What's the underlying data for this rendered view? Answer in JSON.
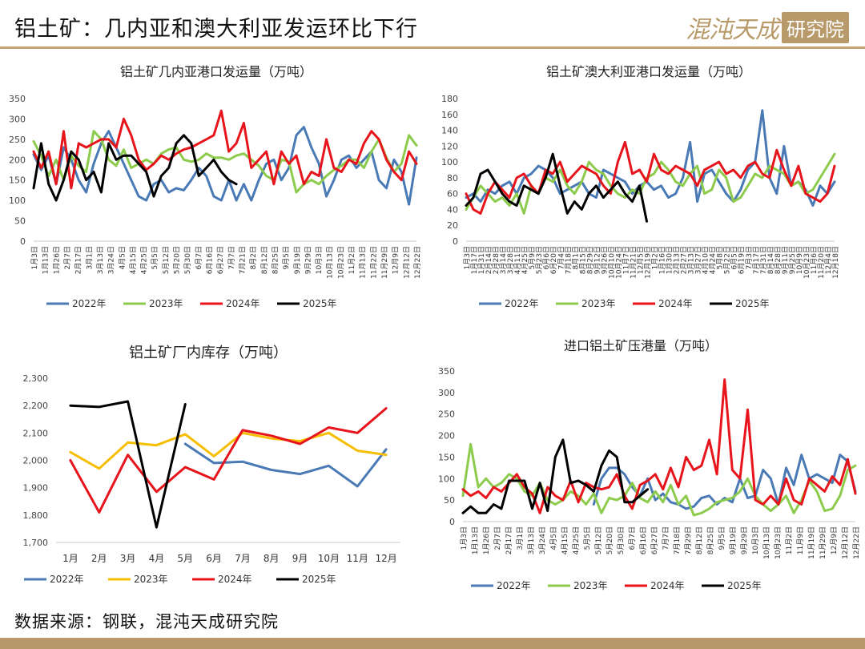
{
  "page": {
    "title": "铝土矿：几内亚和澳大利亚发运环比下行",
    "brand_name": "混沌天成",
    "brand_tag": "研究院",
    "source": "数据来源：钢联，混沌天成研究院"
  },
  "colors": {
    "2022年": "#4a7ab5",
    "2023年": "#8dcb4d",
    "2024年": "#e8141b",
    "2025年": "#000000",
    "2023年_inventory": "#f6be00",
    "accent": "#c8a474"
  },
  "chart_data": [
    {
      "id": "guinea",
      "type": "line",
      "title": "铝土矿几内亚港口发运量（万吨）",
      "ylim": [
        0,
        350
      ],
      "yticks": [
        0,
        50,
        100,
        150,
        200,
        250,
        300,
        350
      ],
      "n": 52,
      "x_ticks": [
        "1月3日",
        "1月13日",
        "1月26日",
        "2月7日",
        "2月17日",
        "3月1日",
        "3月13日",
        "3月24日",
        "4月5日",
        "4月15日",
        "4月25日",
        "5月5日",
        "5月12日",
        "5月20日",
        "5月30日",
        "6月7日",
        "6月16日",
        "6月27日",
        "7月7日",
        "7月21日",
        "8月2日",
        "8月12日",
        "8月25日",
        "9月5日",
        "9月19日",
        "9月29日",
        "10月3日",
        "10月13日",
        "10月23日",
        "11月2日",
        "11月13日",
        "11月22日",
        "11月29日",
        "12月9日",
        "12月12日",
        "12月22日"
      ],
      "series": [
        {
          "name": "2022年",
          "values": [
            213,
            175,
            210,
            140,
            230,
            200,
            150,
            120,
            190,
            240,
            270,
            230,
            190,
            150,
            110,
            100,
            140,
            150,
            120,
            130,
            125,
            150,
            180,
            160,
            110,
            100,
            150,
            100,
            140,
            100,
            150,
            190,
            200,
            150,
            180,
            260,
            280,
            230,
            190,
            110,
            150,
            200,
            210,
            180,
            200,
            220,
            150,
            130,
            200,
            170,
            90,
            205
          ]
        },
        {
          "name": "2023年",
          "values": [
            245,
            210,
            160,
            200,
            150,
            210,
            185,
            170,
            270,
            250,
            200,
            185,
            225,
            180,
            190,
            200,
            190,
            215,
            225,
            230,
            200,
            195,
            200,
            215,
            205,
            205,
            200,
            210,
            215,
            200,
            185,
            160,
            150,
            200,
            195,
            120,
            140,
            150,
            140,
            160,
            175,
            185,
            200,
            200,
            180,
            220,
            250,
            205,
            170,
            190,
            260,
            235
          ]
        },
        {
          "name": "2024年",
          "values": [
            220,
            180,
            220,
            140,
            270,
            130,
            240,
            230,
            240,
            250,
            250,
            230,
            300,
            260,
            200,
            175,
            190,
            210,
            200,
            215,
            225,
            230,
            240,
            250,
            260,
            320,
            220,
            240,
            290,
            180,
            200,
            220,
            140,
            220,
            190,
            210,
            140,
            170,
            160,
            250,
            180,
            170,
            200,
            190,
            240,
            270,
            250,
            200,
            170,
            150,
            220,
            190
          ]
        },
        {
          "name": "2025年",
          "values": [
            130,
            240,
            140,
            100,
            150,
            220,
            200,
            150,
            170,
            120,
            240,
            200,
            210,
            210,
            190,
            170,
            110,
            160,
            180,
            240,
            260,
            240,
            160,
            180,
            200,
            170,
            150,
            140
          ]
        }
      ],
      "legend": [
        "2022年",
        "2023年",
        "2024年",
        "2025年"
      ]
    },
    {
      "id": "australia",
      "type": "line",
      "title": "铝土矿澳大利亚港口发运量（万吨）",
      "ylim": [
        0,
        180
      ],
      "yticks": [
        0,
        20,
        40,
        60,
        80,
        100,
        120,
        140,
        160,
        180
      ],
      "n": 52,
      "x_ticks": [
        "1月3日",
        "1月17日",
        "1月31日",
        "2月14日",
        "2月28日",
        "3月14日",
        "3月28日",
        "4月11日",
        "4月25日",
        "5月9日",
        "5月23日",
        "6月6日",
        "6月20日",
        "7月4日",
        "7月18日",
        "8月1日",
        "8月15日",
        "8月29日",
        "9月12日",
        "9月26日",
        "10月10日",
        "10月24日",
        "11月7日",
        "11月21日",
        "12月5日",
        "12月19日",
        "1月2日",
        "1月16日",
        "1月30日",
        "2月13日",
        "2月27日",
        "3月13日",
        "3月27日",
        "4月10日",
        "4月24日",
        "5月8日",
        "5月22日",
        "6月5日",
        "6月19日",
        "7月3日",
        "7月17日",
        "7月31日",
        "8月14日",
        "8月28日",
        "9月11日",
        "9月25日",
        "10月9日",
        "10月23日",
        "11月6日",
        "11月20日",
        "12月4日",
        "12月18日"
      ],
      "series": [
        {
          "name": "2022年",
          "values": [
            55,
            60,
            50,
            65,
            60,
            70,
            75,
            60,
            80,
            85,
            95,
            90,
            80,
            60,
            65,
            70,
            75,
            60,
            55,
            90,
            85,
            80,
            75,
            60,
            70,
            75,
            65,
            70,
            55,
            60,
            80,
            125,
            50,
            85,
            90,
            75,
            60,
            50,
            65,
            90,
            100,
            165,
            80,
            60,
            120,
            70,
            75,
            65,
            45,
            70,
            60,
            75
          ]
        },
        {
          "name": "2023年",
          "values": [
            40,
            55,
            70,
            60,
            50,
            55,
            45,
            60,
            35,
            70,
            60,
            80,
            75,
            90,
            70,
            60,
            75,
            100,
            90,
            85,
            70,
            60,
            55,
            65,
            60,
            80,
            85,
            100,
            90,
            75,
            70,
            85,
            95,
            60,
            65,
            90,
            80,
            50,
            55,
            70,
            85,
            80,
            95,
            90,
            85,
            70,
            75,
            60,
            65,
            80,
            95,
            110
          ]
        },
        {
          "name": "2024年",
          "values": [
            60,
            40,
            35,
            60,
            75,
            65,
            55,
            80,
            85,
            70,
            60,
            90,
            85,
            100,
            75,
            85,
            95,
            90,
            85,
            70,
            60,
            100,
            125,
            85,
            90,
            75,
            110,
            90,
            85,
            95,
            90,
            85,
            70,
            90,
            95,
            100,
            85,
            90,
            80,
            95,
            100,
            85,
            80,
            115,
            90,
            70,
            95,
            60,
            55,
            50,
            60,
            95
          ]
        },
        {
          "name": "2025年",
          "values": [
            45,
            55,
            85,
            90,
            75,
            60,
            50,
            45,
            70,
            65,
            60,
            80,
            110,
            70,
            35,
            50,
            40,
            60,
            70,
            55,
            65,
            75,
            60,
            50,
            70,
            25
          ]
        }
      ],
      "legend": [
        "2022年",
        "2023年",
        "2024年",
        "2025年"
      ]
    },
    {
      "id": "inventory",
      "type": "line",
      "title": "铝土矿厂内库存（万吨）",
      "ylim": [
        1700,
        2300
      ],
      "yticks": [
        1700,
        1800,
        1900,
        2000,
        2100,
        2200,
        2300
      ],
      "categories": [
        "1月",
        "2月",
        "3月",
        "4月",
        "5月",
        "6月",
        "7月",
        "8月",
        "9月",
        "10月",
        "11月",
        "12月"
      ],
      "series": [
        {
          "name": "2022年",
          "values": [
            null,
            null,
            null,
            null,
            2060,
            1990,
            1995,
            1965,
            1950,
            1980,
            1905,
            2040
          ]
        },
        {
          "name": "2023年",
          "values": [
            2030,
            1970,
            2065,
            2055,
            2095,
            2015,
            2100,
            2080,
            2070,
            2100,
            2035,
            2020
          ]
        },
        {
          "name": "2024年",
          "values": [
            2000,
            1810,
            2020,
            1885,
            1975,
            1930,
            2110,
            2090,
            2060,
            2120,
            2100,
            2190
          ]
        },
        {
          "name": "2025年",
          "values": [
            2200,
            2195,
            2215,
            1755,
            2205,
            null,
            null,
            null,
            null,
            null,
            null,
            null
          ]
        }
      ],
      "legend": [
        "2022年",
        "2023年",
        "2024年",
        "2025年"
      ]
    },
    {
      "id": "port-stock",
      "type": "line",
      "title": "进口铝土矿压港量（万吨）",
      "ylim": [
        0,
        350
      ],
      "yticks": [
        0,
        50,
        100,
        150,
        200,
        250,
        300,
        350
      ],
      "n": 52,
      "x_ticks": [
        "1月3日",
        "1月13日",
        "1月26日",
        "2月7日",
        "2月17日",
        "3月1日",
        "3月13日",
        "3月24日",
        "4月5日",
        "4月15日",
        "4月25日",
        "5月5日",
        "5月12日",
        "5月20日",
        "5月30日",
        "6月7日",
        "6月16日",
        "6月27日",
        "7月7日",
        "7月18日",
        "7月29日",
        "8月12日",
        "8月25日",
        "9月5日",
        "9月19日",
        "9月29日",
        "10月3日",
        "10月13日",
        "10月23日",
        "11月2日",
        "11月9日",
        "11月19日",
        "11月29日",
        "12月9日",
        "12月12日",
        "12月22日"
      ],
      "series": [
        {
          "name": "2022年",
          "values": [
            null,
            null,
            null,
            null,
            null,
            null,
            null,
            null,
            null,
            null,
            null,
            null,
            null,
            null,
            null,
            null,
            null,
            40,
            100,
            125,
            125,
            110,
            80,
            60,
            100,
            50,
            65,
            45,
            40,
            30,
            35,
            55,
            60,
            40,
            55,
            45,
            100,
            55,
            60,
            120,
            100,
            40,
            125,
            85,
            155,
            100,
            110,
            100,
            90,
            155,
            140,
            70
          ]
        },
        {
          "name": "2023年",
          "values": [
            60,
            180,
            80,
            100,
            80,
            90,
            110,
            100,
            70,
            60,
            90,
            50,
            40,
            50,
            70,
            60,
            40,
            65,
            20,
            55,
            50,
            60,
            90,
            55,
            45,
            70,
            45,
            85,
            40,
            60,
            15,
            20,
            30,
            45,
            50,
            55,
            70,
            100,
            60,
            40,
            25,
            40,
            60,
            20,
            50,
            95,
            70,
            25,
            30,
            60,
            120,
            130
          ]
        },
        {
          "name": "2024年",
          "values": [
            75,
            60,
            70,
            55,
            80,
            70,
            90,
            110,
            80,
            65,
            20,
            80,
            60,
            50,
            95,
            45,
            90,
            80,
            75,
            80,
            110,
            60,
            30,
            85,
            95,
            110,
            75,
            125,
            80,
            150,
            120,
            130,
            190,
            110,
            330,
            120,
            100,
            260,
            50,
            40,
            60,
            40,
            100,
            50,
            40,
            100,
            85,
            70,
            105,
            85,
            145,
            65
          ]
        },
        {
          "name": "2025年",
          "values": [
            20,
            35,
            20,
            20,
            40,
            30,
            95,
            95,
            95,
            30,
            90,
            25,
            150,
            190,
            90,
            95,
            85,
            70,
            130,
            165,
            150,
            45,
            45,
            60,
            75
          ]
        }
      ],
      "legend": [
        "2022年",
        "2023年",
        "2024年",
        "2025年"
      ]
    }
  ]
}
